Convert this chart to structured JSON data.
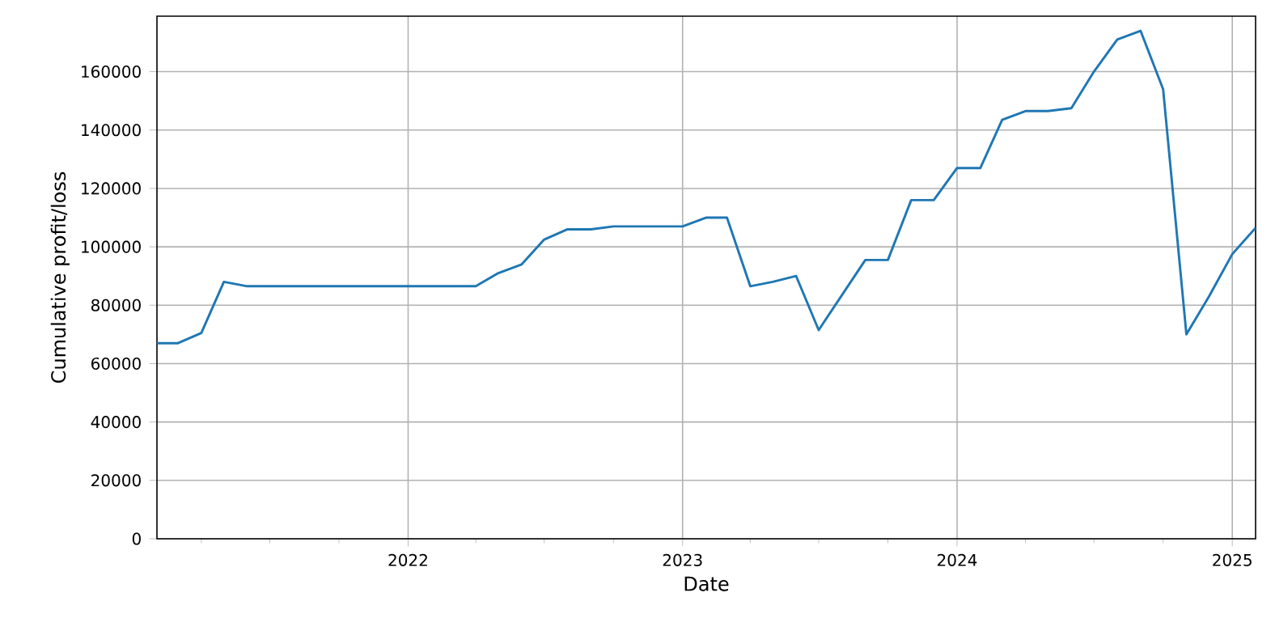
{
  "chart_data": {
    "type": "line",
    "xlabel": "Date",
    "ylabel": "Cumulative profit/loss",
    "x": [
      "2021-02",
      "2021-03",
      "2021-04",
      "2021-05",
      "2021-06",
      "2021-07",
      "2021-08",
      "2021-09",
      "2021-10",
      "2021-11",
      "2021-12",
      "2022-01",
      "2022-02",
      "2022-03",
      "2022-04",
      "2022-05",
      "2022-06",
      "2022-07",
      "2022-08",
      "2022-09",
      "2022-10",
      "2022-11",
      "2022-12",
      "2023-01",
      "2023-02",
      "2023-03",
      "2023-04",
      "2023-05",
      "2023-06",
      "2023-07",
      "2023-08",
      "2023-09",
      "2023-10",
      "2023-11",
      "2023-12",
      "2024-01",
      "2024-02",
      "2024-03",
      "2024-04",
      "2024-05",
      "2024-06",
      "2024-07",
      "2024-08",
      "2024-09",
      "2024-10",
      "2024-11",
      "2024-12",
      "2025-01",
      "2025-02"
    ],
    "series": [
      {
        "color": "#1f77b4",
        "values": [
          67000,
          67000,
          70500,
          88000,
          86500,
          86500,
          86500,
          86500,
          86500,
          86500,
          86500,
          86500,
          86500,
          86500,
          86500,
          91000,
          94000,
          102500,
          106000,
          106000,
          107000,
          107000,
          107000,
          107000,
          110000,
          110000,
          86500,
          88000,
          90000,
          71500,
          83500,
          95500,
          95500,
          116000,
          116000,
          127000,
          127000,
          143500,
          146500,
          146500,
          147500,
          160000,
          171000,
          174000,
          154000,
          70000,
          83000,
          97500,
          106500
        ]
      }
    ],
    "xlim": [
      "2021-02",
      "2025-02"
    ],
    "xticks": [
      {
        "value": "2021-04",
        "label": null
      },
      {
        "value": "2021-07",
        "label": null
      },
      {
        "value": "2021-10",
        "label": null
      },
      "2022",
      {
        "value": "2022-04",
        "label": null
      },
      {
        "value": "2022-07",
        "label": null
      },
      {
        "value": "2022-10",
        "label": null
      },
      "2023",
      {
        "value": "2023-04",
        "label": null
      },
      {
        "value": "2023-07",
        "label": null
      },
      {
        "value": "2023-10",
        "label": null
      },
      "2024",
      {
        "value": "2024-04",
        "label": null
      },
      {
        "value": "2024-07",
        "label": null
      },
      {
        "value": "2024-10",
        "label": null
      },
      "2025"
    ],
    "ylim": [
      0,
      179000
    ],
    "yticks": [
      0,
      20000,
      40000,
      60000,
      80000,
      100000,
      120000,
      140000,
      160000
    ],
    "grid": true,
    "marker": "none",
    "line_style": "solid"
  }
}
